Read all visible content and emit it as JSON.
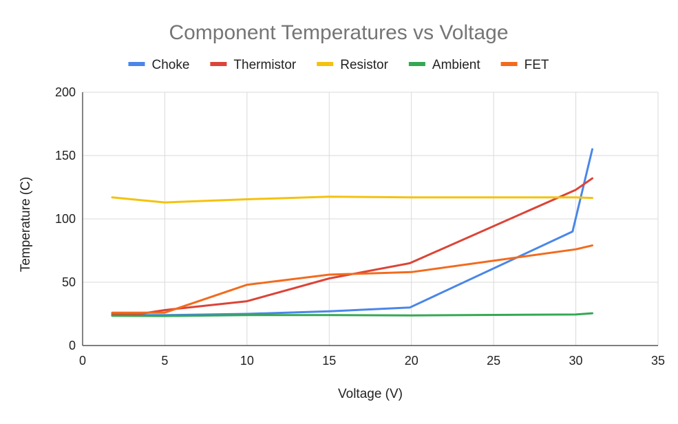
{
  "chart_data": {
    "type": "line",
    "title": "Component Temperatures vs Voltage",
    "xlabel": "Voltage (V)",
    "ylabel": "Temperature (C)",
    "xlim": [
      0,
      35
    ],
    "ylim": [
      0,
      200
    ],
    "xticks": [
      0,
      5,
      10,
      15,
      20,
      25,
      30,
      35
    ],
    "yticks": [
      0,
      50,
      100,
      150,
      200
    ],
    "grid": true,
    "legend_position": "top",
    "series": [
      {
        "name": "Choke",
        "color": "#4a86e8",
        "points": [
          [
            1.8,
            24
          ],
          [
            5,
            24
          ],
          [
            10,
            25
          ],
          [
            15,
            27
          ],
          [
            19.9,
            30
          ],
          [
            29.8,
            90
          ],
          [
            31,
            155
          ]
        ]
      },
      {
        "name": "Thermistor",
        "color": "#db4437",
        "points": [
          [
            1.8,
            25
          ],
          [
            3.5,
            25
          ],
          [
            5,
            28
          ],
          [
            10,
            35
          ],
          [
            15,
            53
          ],
          [
            19.9,
            65
          ],
          [
            30,
            123
          ],
          [
            31,
            132
          ]
        ]
      },
      {
        "name": "Resistor",
        "color": "#f4c20d",
        "points": [
          [
            1.8,
            117
          ],
          [
            5,
            113
          ],
          [
            10,
            115.5
          ],
          [
            15,
            117.5
          ],
          [
            20,
            117
          ],
          [
            30,
            117
          ],
          [
            31,
            116.5
          ]
        ]
      },
      {
        "name": "Ambient",
        "color": "#34a853",
        "points": [
          [
            1.8,
            23.5
          ],
          [
            5,
            23.3
          ],
          [
            10,
            24
          ],
          [
            15,
            24
          ],
          [
            20,
            23.8
          ],
          [
            30,
            24.5
          ],
          [
            31,
            25.5
          ]
        ]
      },
      {
        "name": "FET",
        "color": "#f26b1d",
        "points": [
          [
            1.8,
            26
          ],
          [
            5,
            26
          ],
          [
            10,
            48
          ],
          [
            15,
            56
          ],
          [
            20,
            58
          ],
          [
            30,
            76
          ],
          [
            31,
            79
          ]
        ]
      }
    ]
  }
}
